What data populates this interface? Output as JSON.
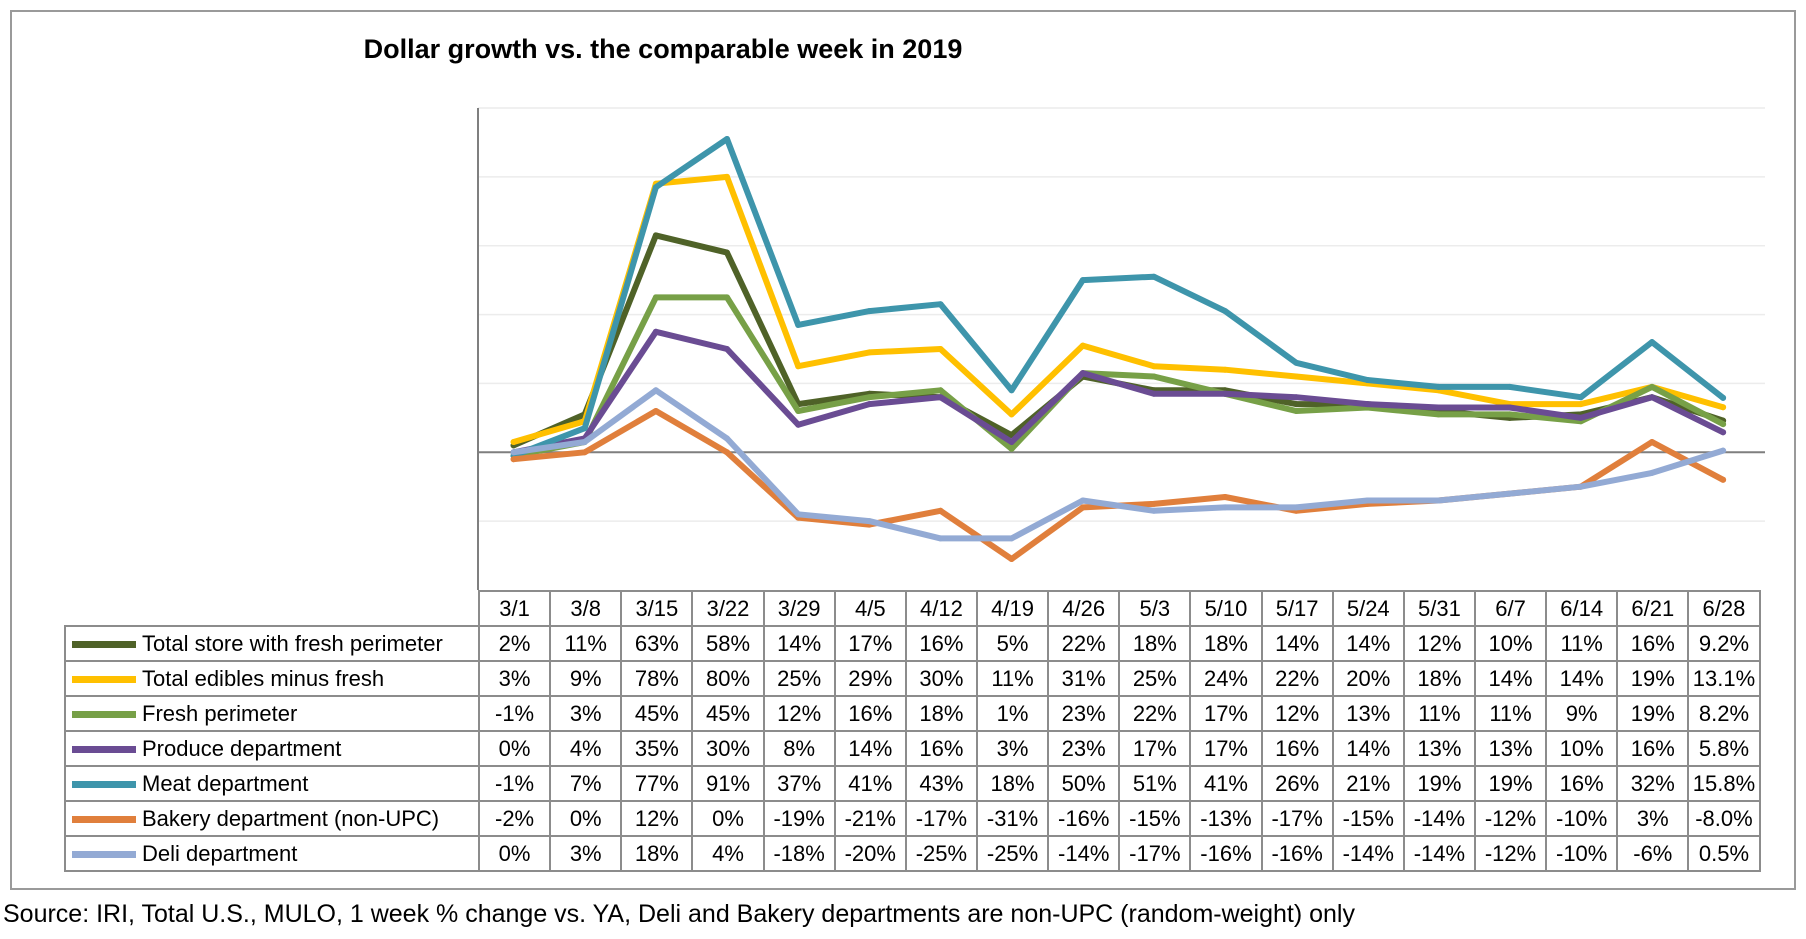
{
  "chart_data": {
    "type": "line",
    "title": "Dollar growth vs. the comparable week in 2019",
    "categories": [
      "3/1",
      "3/8",
      "3/15",
      "3/22",
      "3/29",
      "4/5",
      "4/12",
      "4/19",
      "4/26",
      "5/3",
      "5/10",
      "5/17",
      "5/24",
      "5/31",
      "6/7",
      "6/14",
      "6/21",
      "6/28"
    ],
    "ylim": [
      -40,
      100
    ],
    "y_unit": "%",
    "grid": true,
    "legend": "data table below chart",
    "series": [
      {
        "name": "Total store with fresh perimeter",
        "color": "#4f6228",
        "values": [
          2,
          11,
          63,
          58,
          14,
          17,
          16,
          5,
          22,
          18,
          18,
          14,
          14,
          12,
          10,
          11,
          16,
          9.2
        ],
        "labels": [
          "2%",
          "11%",
          "63%",
          "58%",
          "14%",
          "17%",
          "16%",
          "5%",
          "22%",
          "18%",
          "18%",
          "14%",
          "14%",
          "12%",
          "10%",
          "11%",
          "16%",
          "9.2%"
        ]
      },
      {
        "name": "Total edibles minus fresh",
        "color": "#ffc000",
        "values": [
          3,
          9,
          78,
          80,
          25,
          29,
          30,
          11,
          31,
          25,
          24,
          22,
          20,
          18,
          14,
          14,
          19,
          13.1
        ],
        "labels": [
          "3%",
          "9%",
          "78%",
          "80%",
          "25%",
          "29%",
          "30%",
          "11%",
          "31%",
          "25%",
          "24%",
          "22%",
          "20%",
          "18%",
          "14%",
          "14%",
          "19%",
          "13.1%"
        ]
      },
      {
        "name": "Fresh perimeter",
        "color": "#77a047",
        "values": [
          -1,
          3,
          45,
          45,
          12,
          16,
          18,
          1,
          23,
          22,
          17,
          12,
          13,
          11,
          11,
          9,
          19,
          8.2
        ],
        "labels": [
          "-1%",
          "3%",
          "45%",
          "45%",
          "12%",
          "16%",
          "18%",
          "1%",
          "23%",
          "22%",
          "17%",
          "12%",
          "13%",
          "11%",
          "11%",
          "9%",
          "19%",
          "8.2%"
        ]
      },
      {
        "name": "Produce department",
        "color": "#6a4c93",
        "values": [
          0,
          4,
          35,
          30,
          8,
          14,
          16,
          3,
          23,
          17,
          17,
          16,
          14,
          13,
          13,
          10,
          16,
          5.8
        ],
        "labels": [
          "0%",
          "4%",
          "35%",
          "30%",
          "8%",
          "14%",
          "16%",
          "3%",
          "23%",
          "17%",
          "17%",
          "16%",
          "14%",
          "13%",
          "13%",
          "10%",
          "16%",
          "5.8%"
        ]
      },
      {
        "name": "Meat department",
        "color": "#3e95ab",
        "values": [
          -1,
          7,
          77,
          91,
          37,
          41,
          43,
          18,
          50,
          51,
          41,
          26,
          21,
          19,
          19,
          16,
          32,
          15.8
        ],
        "labels": [
          "-1%",
          "7%",
          "77%",
          "91%",
          "37%",
          "41%",
          "43%",
          "18%",
          "50%",
          "51%",
          "41%",
          "26%",
          "21%",
          "19%",
          "19%",
          "16%",
          "32%",
          "15.8%"
        ]
      },
      {
        "name": "Bakery department (non-UPC)",
        "color": "#e07f3c",
        "values": [
          -2,
          0,
          12,
          0,
          -19,
          -21,
          -17,
          -31,
          -16,
          -15,
          -13,
          -17,
          -15,
          -14,
          -12,
          -10,
          3,
          -8.0
        ],
        "labels": [
          "-2%",
          "0%",
          "12%",
          "0%",
          "-19%",
          "-21%",
          "-17%",
          "-31%",
          "-16%",
          "-15%",
          "-13%",
          "-17%",
          "-15%",
          "-14%",
          "-12%",
          "-10%",
          "3%",
          "-8.0%"
        ]
      },
      {
        "name": "Deli department",
        "color": "#93aad4",
        "values": [
          0,
          3,
          18,
          4,
          -18,
          -20,
          -25,
          -25,
          -14,
          -17,
          -16,
          -16,
          -14,
          -14,
          -12,
          -10,
          -6,
          0.5
        ],
        "labels": [
          "0%",
          "3%",
          "18%",
          "4%",
          "-18%",
          "-20%",
          "-25%",
          "-25%",
          "-14%",
          "-17%",
          "-16%",
          "-16%",
          "-14%",
          "-14%",
          "-12%",
          "-10%",
          "-6%",
          "0.5%"
        ]
      }
    ]
  },
  "source_note": "Source: IRI, Total U.S., MULO, 1 week % change vs. YA, Deli and Bakery departments are non-UPC (random-weight) only"
}
